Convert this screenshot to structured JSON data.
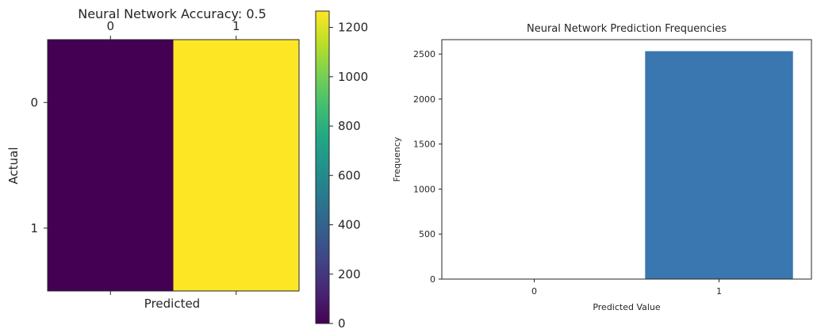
{
  "chart_data": [
    {
      "type": "heatmap",
      "title": "Neural Network Accuracy: 0.5",
      "xlabel": "Predicted",
      "ylabel": "Actual",
      "x_categories": [
        "0",
        "1"
      ],
      "y_categories": [
        "0",
        "1"
      ],
      "values": [
        [
          0,
          1266
        ],
        [
          0,
          1266
        ]
      ],
      "colormap": "viridis",
      "colorbar": {
        "range": [
          0,
          1266
        ],
        "ticks": [
          0,
          200,
          400,
          600,
          800,
          1000,
          1200
        ]
      }
    },
    {
      "type": "bar",
      "title": "Neural Network Prediction Frequencies",
      "xlabel": "Predicted Value",
      "ylabel": "Frequency",
      "categories": [
        "0",
        "1"
      ],
      "values": [
        0,
        2532
      ],
      "ylim": [
        0,
        2660
      ],
      "yticks": [
        0,
        500,
        1000,
        1500,
        2000,
        2500
      ],
      "bar_color": "#3a76af",
      "grid": false
    }
  ]
}
